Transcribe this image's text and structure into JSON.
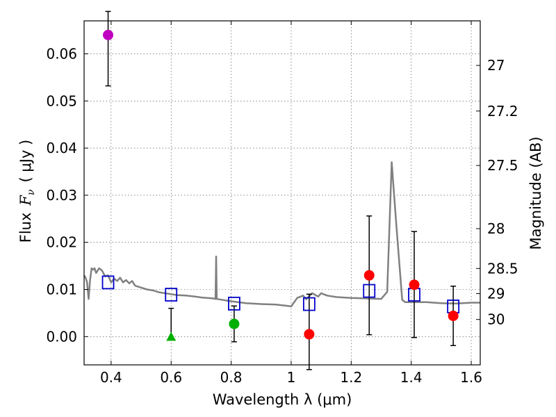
{
  "chart_data": {
    "type": "scatter",
    "xlabel": "Wavelength  λ (μm)",
    "ylabel_prefix": "Flux",
    "ylabel_var": "F",
    "ylabel_sub": "ν",
    "ylabel_unit": "( μJy )",
    "y2label": "Magnitude (AB)",
    "xlim": [
      0.31,
      1.63
    ],
    "ylim": [
      -0.006,
      0.067
    ],
    "grid": true,
    "xticks": [
      {
        "value": 0.4,
        "label": "0.4"
      },
      {
        "value": 0.6,
        "label": "0.6"
      },
      {
        "value": 0.8,
        "label": "0.8"
      },
      {
        "value": 1.0,
        "label": "1"
      },
      {
        "value": 1.2,
        "label": "1.2"
      },
      {
        "value": 1.4,
        "label": "1.4"
      },
      {
        "value": 1.6,
        "label": "1.6"
      }
    ],
    "yticks": [
      {
        "value": 0.0,
        "label": "0.00"
      },
      {
        "value": 0.01,
        "label": "0.01"
      },
      {
        "value": 0.02,
        "label": "0.02"
      },
      {
        "value": 0.03,
        "label": "0.03"
      },
      {
        "value": 0.04,
        "label": "0.04"
      },
      {
        "value": 0.05,
        "label": "0.05"
      },
      {
        "value": 0.06,
        "label": "0.06"
      }
    ],
    "y2ticks": [
      {
        "mag": 27,
        "label": "27"
      },
      {
        "mag": 27.2,
        "label": "27.2"
      },
      {
        "mag": 27.5,
        "label": "27.5"
      },
      {
        "mag": 28,
        "label": "28"
      },
      {
        "mag": 28.5,
        "label": "28.5"
      },
      {
        "mag": 29,
        "label": "29"
      },
      {
        "mag": 30,
        "label": "30"
      }
    ],
    "model_spectrum": {
      "color": "#808080",
      "x": [
        0.31,
        0.315,
        0.32,
        0.325,
        0.33,
        0.335,
        0.34,
        0.345,
        0.35,
        0.36,
        0.37,
        0.38,
        0.39,
        0.4,
        0.41,
        0.42,
        0.43,
        0.44,
        0.45,
        0.46,
        0.47,
        0.48,
        0.5,
        0.52,
        0.54,
        0.56,
        0.58,
        0.6,
        0.62,
        0.65,
        0.68,
        0.7,
        0.74,
        0.748,
        0.75,
        0.752,
        0.76,
        0.8,
        0.85,
        0.9,
        0.95,
        0.99,
        1.0,
        1.02,
        1.04,
        1.05,
        1.07,
        1.09,
        1.1,
        1.12,
        1.15,
        1.2,
        1.25,
        1.3,
        1.32,
        1.335,
        1.35,
        1.37,
        1.38,
        1.4,
        1.45,
        1.5,
        1.55,
        1.6,
        1.63
      ],
      "y": [
        0.013,
        0.0125,
        0.0115,
        0.008,
        0.012,
        0.0145,
        0.0142,
        0.0145,
        0.0135,
        0.0145,
        0.014,
        0.0128,
        0.013,
        0.0115,
        0.0123,
        0.0118,
        0.0125,
        0.0115,
        0.012,
        0.0113,
        0.0118,
        0.0108,
        0.0104,
        0.01,
        0.0098,
        0.0094,
        0.0092,
        0.009,
        0.0088,
        0.0087,
        0.0085,
        0.0083,
        0.0081,
        0.008,
        0.017,
        0.008,
        0.0079,
        0.0075,
        0.0071,
        0.0069,
        0.0068,
        0.0065,
        0.0064,
        0.0082,
        0.0087,
        0.0079,
        0.0092,
        0.0085,
        0.0092,
        0.0087,
        0.0084,
        0.0082,
        0.0081,
        0.008,
        0.0095,
        0.037,
        0.024,
        0.0078,
        0.0073,
        0.0073,
        0.0073,
        0.0071,
        0.007,
        0.0072,
        0.0072
      ]
    },
    "model_photometry": {
      "marker": "open-square",
      "color": "#0000cc",
      "x": [
        0.39,
        0.6,
        0.81,
        1.06,
        1.26,
        1.41,
        1.54
      ],
      "y": [
        0.0115,
        0.0089,
        0.007,
        0.0069,
        0.0097,
        0.0089,
        0.0064
      ]
    },
    "observed": [
      {
        "x": 0.39,
        "y": 0.064,
        "err_low": 0.0108,
        "err_high": 0.005,
        "marker": "circle",
        "color": "#bf00bf"
      },
      {
        "x": 0.6,
        "y": 0.0,
        "err_low": 0.0,
        "err_high": 0.006,
        "marker": "triangle",
        "color": "#00b000"
      },
      {
        "x": 0.81,
        "y": 0.0027,
        "err_low": 0.0038,
        "err_high": 0.0038,
        "marker": "circle",
        "color": "#00b000"
      },
      {
        "x": 1.06,
        "y": 0.0005,
        "err_low": 0.0075,
        "err_high": 0.0085,
        "marker": "circle",
        "color": "#ff0000"
      },
      {
        "x": 1.26,
        "y": 0.013,
        "err_low": 0.0126,
        "err_high": 0.0126,
        "marker": "circle",
        "color": "#ff0000"
      },
      {
        "x": 1.41,
        "y": 0.011,
        "err_low": 0.0112,
        "err_high": 0.0113,
        "marker": "circle",
        "color": "#ff0000"
      },
      {
        "x": 1.54,
        "y": 0.0044,
        "err_low": 0.0063,
        "err_high": 0.0063,
        "marker": "circle",
        "color": "#ff0000"
      }
    ]
  }
}
